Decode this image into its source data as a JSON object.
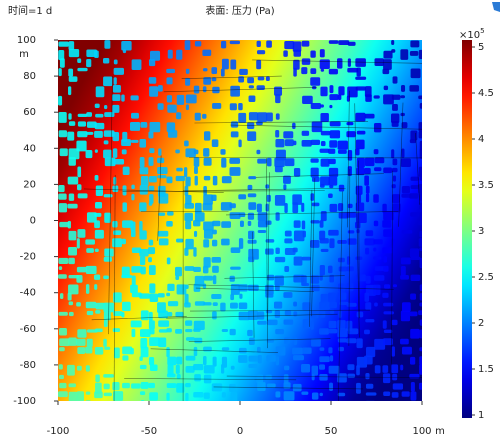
{
  "chart_data": {
    "type": "heatmap",
    "title": "表面: 压力 (Pa)",
    "subtitle": "时间=1 d",
    "x_label": "m",
    "y_label": "m",
    "xlim": [
      -100,
      100
    ],
    "ylim": [
      -100,
      100
    ],
    "xticks": [
      -100,
      -50,
      0,
      50,
      100
    ],
    "yticks": [
      -100,
      -80,
      -60,
      -40,
      -20,
      0,
      20,
      40,
      60,
      80,
      100
    ],
    "colorbar": {
      "lim": [
        1,
        5
      ],
      "ticks": [
        1,
        1.5,
        2,
        2.5,
        3,
        3.5,
        4,
        4.5,
        5
      ],
      "multiplier": "×10",
      "exponent": "5",
      "colormap": "jet"
    }
  }
}
